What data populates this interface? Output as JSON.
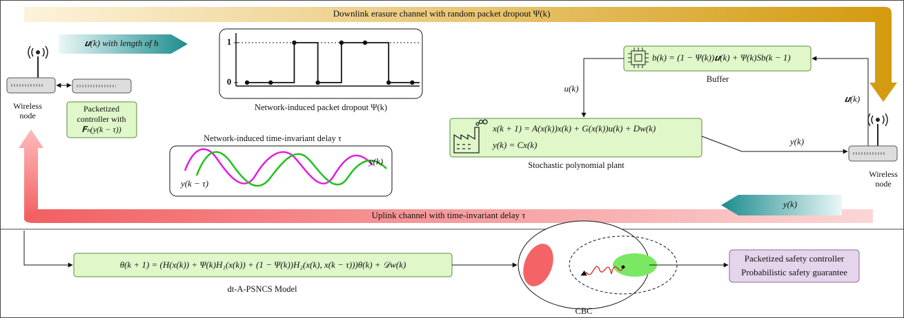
{
  "downlink_label": "Downlink erasure channel with random packet dropout Ψ(k)",
  "uplink_label": "Uplink channel with time-invariant delay τ",
  "control_input_arrow": "𝒖(k) with length of h",
  "left_node": {
    "lines": [
      "Wireless",
      "node"
    ]
  },
  "right_node": {
    "lines": [
      "Wireless",
      "node"
    ]
  },
  "controller": {
    "lines": [
      "Packetized",
      "controller with",
      "𝐅ₕ(y(k − τ))"
    ]
  },
  "dropout_plot": {
    "caption": "Network-induced packet dropout Ψ(k)",
    "ylim": [
      0,
      1
    ],
    "yticks": [
      0,
      1
    ],
    "values": [
      0,
      0,
      1,
      0,
      1,
      1,
      0,
      0
    ]
  },
  "delay_plot": {
    "caption": "Network-induced time-invariant delay τ",
    "labels": [
      "y(k)",
      "y(k − τ)"
    ]
  },
  "buffer": {
    "equation": "b(k) = (1 − Ψ(k))𝒖(k) + Ψ(k)Sb(k − 1)",
    "caption": "Buffer"
  },
  "plant": {
    "equations": [
      "x(k + 1) = A(x(k))x(k) + G(x(k))u(k) + Dw(k)",
      "y(k) = Cx(k)"
    ],
    "caption": "Stochastic polynomial plant"
  },
  "edge_labels": {
    "buffer_to_plant": "u(k)",
    "node_to_buffer": "𝒖(k)",
    "plant_to_node": "y(k)"
  },
  "output_arrow": "y(k)",
  "model": {
    "equation": "θ(k + 1) = (H(x(k)) + Ψ(k)H₁(x(k)) + (1 − Ψ(k))H₂(x(k), x(k − τ)))θ(k) + 𝒟w(k)",
    "caption": "dt-A-PSNCS Model"
  },
  "cbc": "CBC",
  "result": {
    "lines": [
      "Packetized safety controller",
      "Probabilistic safety guarantee"
    ]
  }
}
